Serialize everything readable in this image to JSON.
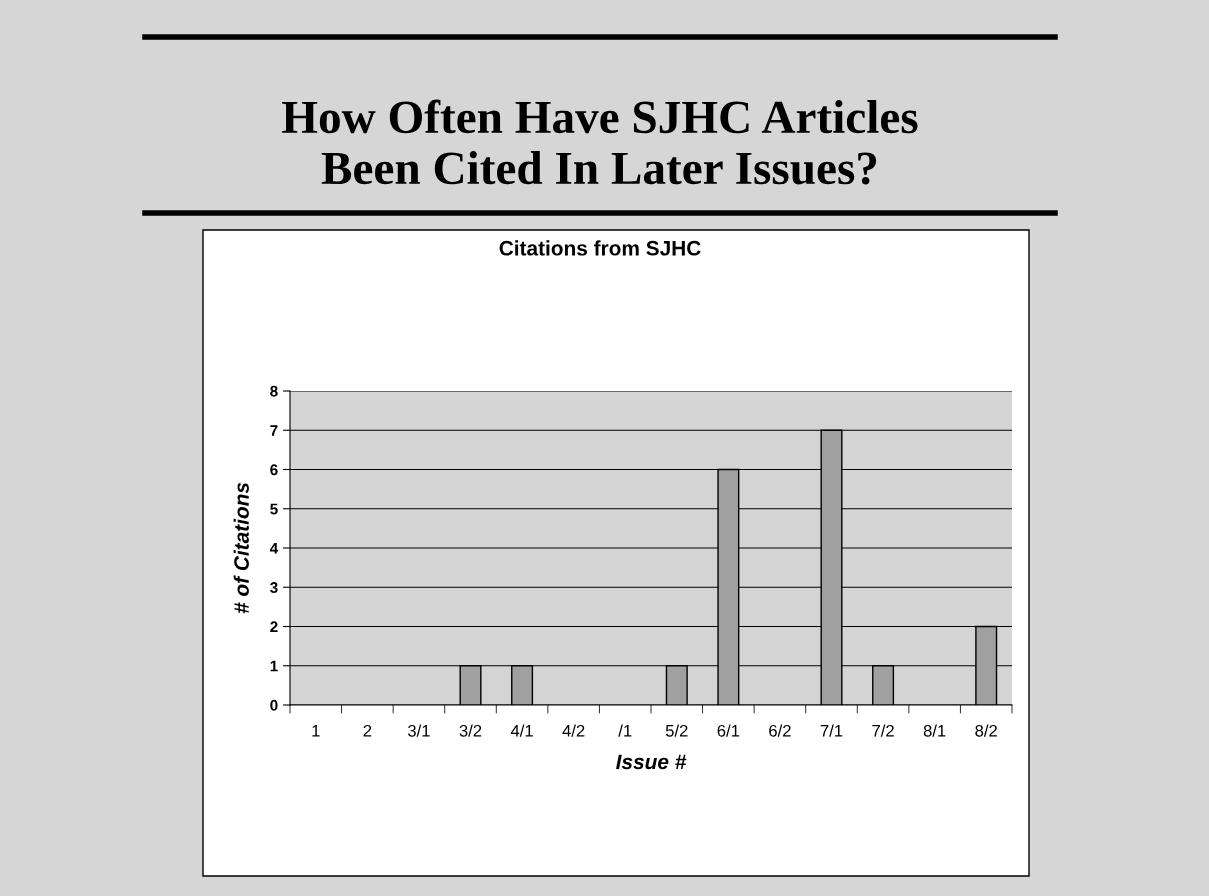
{
  "chart_data": {
    "type": "bar",
    "title": "How Often Have SJHC Articles\nBeen Cited In Later Issues?",
    "subtitle": "Citations from SJHC",
    "xlabel": "Issue #",
    "ylabel": "# of Citations",
    "categories": [
      "1",
      "2",
      "3/1",
      "3/2",
      "4/1",
      "4/2",
      "/1",
      "5/2",
      "6/1",
      "6/2",
      "7/1",
      "7/2",
      "8/1",
      "8/2"
    ],
    "values": [
      0,
      0,
      0,
      1,
      1,
      0,
      0,
      1,
      6,
      0,
      7,
      1,
      0,
      2
    ],
    "color": "#a0a0a0",
    "ylim": [
      0,
      8
    ],
    "yticks": [
      0,
      1,
      2,
      3,
      4,
      5,
      6,
      7,
      8
    ],
    "grid": "y",
    "legend": false
  }
}
